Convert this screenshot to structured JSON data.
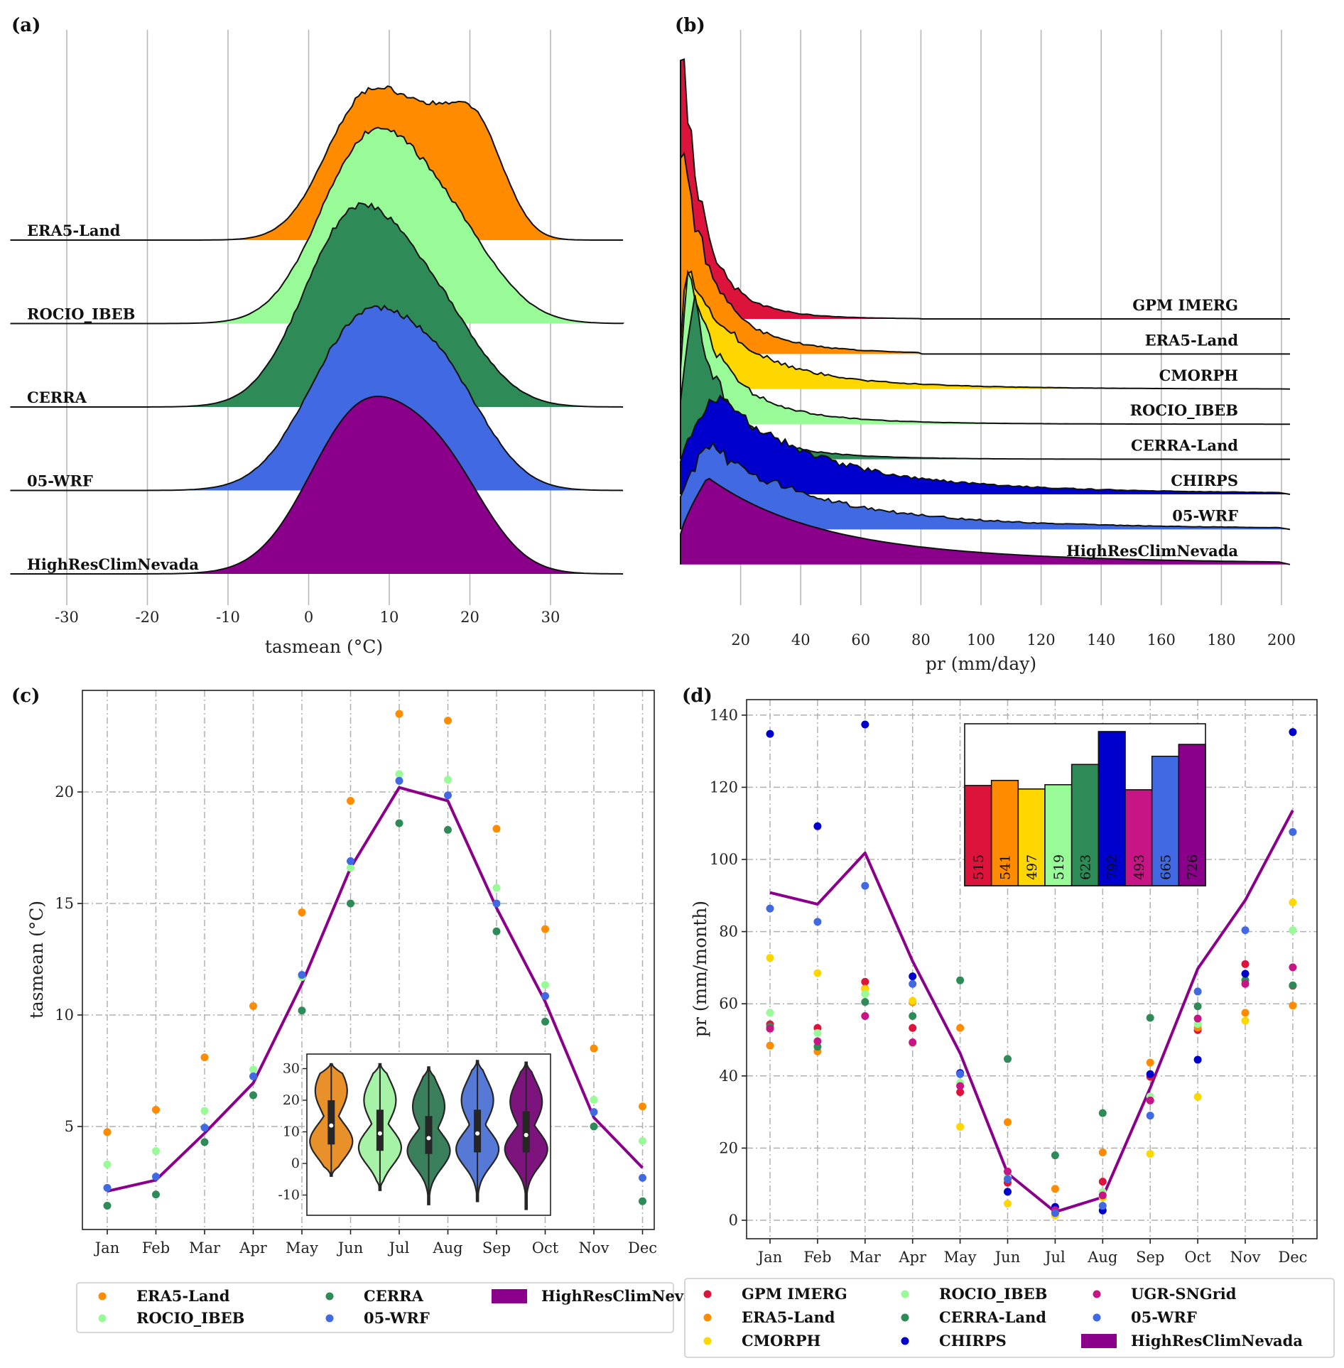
{
  "figure": {
    "panels": [
      "(a)",
      "(b)",
      "(c)",
      "(d)"
    ]
  },
  "chart_data": [
    {
      "id": "a",
      "type": "area",
      "subtype": "ridgeline-density",
      "panel_label": "(a)",
      "xlabel": "tasmean (°C)",
      "ylabel": "",
      "xlim": [
        -37,
        39
      ],
      "xticks": [
        -30,
        -20,
        -10,
        0,
        10,
        20,
        30
      ],
      "grid": "vertical",
      "series": [
        {
          "name": "ERA5-Land",
          "color": "#ff8c00",
          "peak_rel": 0.86,
          "components": [
            {
              "mu": 7,
              "sigma": 5.0,
              "w": 1.0
            },
            {
              "mu": 15,
              "sigma": 4.0,
              "w": 0.55
            },
            {
              "mu": 21,
              "sigma": 3.5,
              "w": 0.72
            }
          ]
        },
        {
          "name": "ROCIO_IBEB",
          "color": "#98fb98",
          "peak_rel": 1.1,
          "components": [
            {
              "mu": 7,
              "sigma": 6.0,
              "w": 1.0
            },
            {
              "mu": 17,
              "sigma": 6.0,
              "w": 0.55
            }
          ]
        },
        {
          "name": "CERRA",
          "color": "#2e8b57",
          "peak_rel": 1.14,
          "components": [
            {
              "mu": 5,
              "sigma": 6.0,
              "w": 1.0
            },
            {
              "mu": 15,
              "sigma": 6.0,
              "w": 0.55
            }
          ]
        },
        {
          "name": "05-WRF",
          "color": "#4169e1",
          "peak_rel": 1.03,
          "components": [
            {
              "mu": 6.5,
              "sigma": 6.5,
              "w": 1.0
            },
            {
              "mu": 17,
              "sigma": 5.5,
              "w": 0.55
            }
          ]
        },
        {
          "name": "HighResClimNevada",
          "color": "#8b008b",
          "peak_rel": 1.0,
          "components": [
            {
              "mu": 6.5,
              "sigma": 6.5,
              "w": 1.0
            },
            {
              "mu": 17,
              "sigma": 5.5,
              "w": 0.55
            }
          ]
        }
      ]
    },
    {
      "id": "b",
      "type": "area",
      "subtype": "ridgeline-density",
      "panel_label": "(b)",
      "xlabel": "pr (mm/day)",
      "ylabel": "",
      "xlim": [
        0,
        200
      ],
      "xticks": [
        20,
        40,
        60,
        80,
        100,
        120,
        140,
        160,
        180,
        200
      ],
      "grid": "vertical",
      "series": [
        {
          "name": "GPM IMERG",
          "color": "#dc143c",
          "peak_rel": 3.2,
          "peak_x": 0.3,
          "decay": 6.0,
          "tail_end": 80
        },
        {
          "name": "ERA5-Land",
          "color": "#ff8c00",
          "peak_rel": 2.35,
          "peak_x": 0.3,
          "decay": 9.0,
          "tail_end": 80
        },
        {
          "name": "CMORPH",
          "color": "#ffd700",
          "peak_rel": 1.36,
          "peak_x": 2,
          "decay": 16.0,
          "tail_end": 200
        },
        {
          "name": "ROCIO_IBEB",
          "color": "#98fb98",
          "peak_rel": 1.65,
          "peak_x": 2.5,
          "decay": 11.0,
          "tail_end": 200
        },
        {
          "name": "CERRA-Land",
          "color": "#2e8b57",
          "peak_rel": 1.77,
          "peak_x": 4.5,
          "decay": 9.0,
          "tail_end": 200
        },
        {
          "name": "CHIRPS",
          "color": "#0000cd",
          "peak_rel": 1.16,
          "peak_x": 12,
          "decay": 28.0,
          "tail_end": 200
        },
        {
          "name": "05-WRF",
          "color": "#4169e1",
          "peak_rel": 0.98,
          "peak_x": 9,
          "decay": 30.0,
          "tail_end": 200
        },
        {
          "name": "HighResClimNevada",
          "color": "#8b008b",
          "peak_rel": 1.0,
          "peak_x": 9,
          "decay": 34.0,
          "tail_end": 200
        }
      ]
    },
    {
      "id": "c",
      "type": "scatter",
      "panel_label": "(c)",
      "xlabel": "",
      "ylabel": "tasmean (°C)",
      "categories": [
        "Jan",
        "Feb",
        "Mar",
        "Apr",
        "May",
        "Jun",
        "Jul",
        "Aug",
        "Sep",
        "Oct",
        "Nov",
        "Dec"
      ],
      "ylim": [
        0.4,
        24.6
      ],
      "yticks": [
        5,
        10,
        15,
        20
      ],
      "grid": true,
      "legend_position": "below",
      "series": [
        {
          "name": "ERA5-Land",
          "kind": "points",
          "color": "#ff8c00",
          "values": [
            4.75,
            5.75,
            8.1,
            10.4,
            14.6,
            19.6,
            23.5,
            23.2,
            18.35,
            13.85,
            8.5,
            5.9
          ]
        },
        {
          "name": "ROCIO_IBEB",
          "kind": "points",
          "color": "#98fb98",
          "values": [
            3.3,
            3.9,
            5.7,
            7.55,
            11.7,
            16.6,
            20.8,
            20.55,
            15.7,
            11.35,
            6.2,
            4.35
          ]
        },
        {
          "name": "CERRA",
          "kind": "points",
          "color": "#2e8b57",
          "values": [
            1.45,
            1.95,
            4.3,
            6.4,
            10.2,
            15.0,
            18.6,
            18.3,
            13.75,
            9.7,
            5.0,
            1.65
          ]
        },
        {
          "name": "05-WRF",
          "kind": "points",
          "color": "#4169e1",
          "values": [
            2.25,
            2.75,
            4.95,
            7.25,
            11.8,
            16.9,
            20.5,
            19.85,
            15.0,
            10.85,
            5.65,
            2.7
          ]
        },
        {
          "name": "HighResClimNevada",
          "kind": "line",
          "color": "#8b008b",
          "values": [
            2.1,
            2.6,
            4.7,
            6.95,
            11.4,
            16.6,
            20.2,
            19.6,
            14.8,
            10.6,
            5.4,
            3.15
          ]
        }
      ],
      "inset": {
        "type": "violin",
        "ylim": [
          -16,
          35
        ],
        "yticks": [
          -10,
          0,
          10,
          20,
          30
        ],
        "violins": [
          {
            "name": "ERA5-Land",
            "color": "#e8912a",
            "min": -4,
            "q1": 6,
            "median": 12,
            "q3": 20,
            "max": 31.5
          },
          {
            "name": "ROCIO_IBEB",
            "color": "#a6f2a6",
            "min": -8.5,
            "q1": 4,
            "median": 9.5,
            "q3": 17,
            "max": 31.5
          },
          {
            "name": "CERRA",
            "color": "#3b805c",
            "min": -13,
            "q1": 3,
            "median": 8,
            "q3": 15,
            "max": 30.5
          },
          {
            "name": "05-WRF",
            "color": "#5779d6",
            "min": -12,
            "q1": 3.5,
            "median": 9.5,
            "q3": 17,
            "max": 32.5
          },
          {
            "name": "HighResClimNevada",
            "color": "#7d137d",
            "min": -14.5,
            "q1": 3.5,
            "median": 9,
            "q3": 16.5,
            "max": 32
          }
        ]
      }
    },
    {
      "id": "d",
      "type": "scatter",
      "panel_label": "(d)",
      "xlabel": "",
      "ylabel": "pr (mm/month)",
      "categories": [
        "Jan",
        "Feb",
        "Mar",
        "Apr",
        "May",
        "Jun",
        "Jul",
        "Aug",
        "Sep",
        "Oct",
        "Nov",
        "Dec"
      ],
      "ylim": [
        -5,
        144
      ],
      "yticks": [
        0,
        20,
        40,
        60,
        80,
        100,
        120,
        140
      ],
      "grid": true,
      "legend_position": "below",
      "series": [
        {
          "name": "GPM IMERG",
          "kind": "points",
          "color": "#dc143c",
          "values": [
            54.3,
            53.3,
            66.1,
            53.3,
            35.5,
            10.4,
            2.0,
            10.7,
            39.8,
            52.7,
            71.0,
            65.0
          ]
        },
        {
          "name": "ERA5-Land",
          "kind": "points",
          "color": "#ff8c00",
          "values": [
            48.4,
            46.8,
            64.2,
            60.4,
            53.3,
            27.2,
            8.7,
            18.8,
            43.7,
            53.4,
            57.5,
            59.5
          ]
        },
        {
          "name": "CMORPH",
          "kind": "points",
          "color": "#ffd700",
          "values": [
            72.7,
            68.5,
            64.0,
            60.8,
            25.9,
            4.6,
            1.3,
            6.3,
            18.4,
            34.2,
            55.3,
            88.1
          ]
        },
        {
          "name": "ROCIO_IBEB",
          "kind": "points",
          "color": "#98fb98",
          "values": [
            57.5,
            51.9,
            62.7,
            49.0,
            38.1,
            11.9,
            2.1,
            7.8,
            34.3,
            54.4,
            66.6,
            80.4
          ]
        },
        {
          "name": "CERRA-Land",
          "kind": "points",
          "color": "#2e8b57",
          "values": [
            53.6,
            48.1,
            60.5,
            56.6,
            66.5,
            44.7,
            18.0,
            29.7,
            56.1,
            59.3,
            66.5,
            65.1
          ]
        },
        {
          "name": "CHIRPS",
          "kind": "points",
          "color": "#0000cd",
          "values": [
            134.8,
            109.2,
            137.4,
            67.6,
            40.8,
            7.9,
            3.7,
            2.7,
            40.5,
            44.5,
            68.3,
            135.3
          ]
        },
        {
          "name": "UGR-SNGrid",
          "kind": "points",
          "color": "#c71585",
          "values": [
            53.1,
            49.6,
            56.6,
            49.3,
            37.2,
            13.5,
            2.8,
            6.9,
            33.2,
            55.9,
            65.5,
            70.1
          ]
        },
        {
          "name": "05-WRF",
          "kind": "points",
          "color": "#4169e1",
          "values": [
            86.4,
            82.7,
            92.7,
            65.5,
            40.5,
            11.4,
            2.0,
            4.0,
            29.0,
            63.4,
            80.4,
            107.6
          ]
        },
        {
          "name": "HighResClimNevada",
          "kind": "line",
          "color": "#8b008b",
          "values": [
            90.8,
            87.6,
            101.8,
            71.8,
            46.3,
            13.0,
            2.3,
            6.4,
            36.7,
            69.7,
            88.7,
            113.6
          ]
        }
      ],
      "inset": {
        "type": "bar",
        "title": "",
        "ylim": [
          0,
          832
        ],
        "categories": [
          "GPM IMERG",
          "ERA5-Land",
          "CMORPH",
          "ROCIO_IBEB",
          "CERRA-Land",
          "CHIRPS",
          "UGR-SNGrid",
          "05-WRF",
          "HighResClimNevada"
        ],
        "values": [
          515,
          541,
          497,
          519,
          623,
          792,
          493,
          665,
          726
        ],
        "labels": [
          "515",
          "541",
          "497",
          "519",
          "623",
          "792",
          "493",
          "665",
          "726"
        ],
        "colors": [
          "#dc143c",
          "#ff8c00",
          "#ffd700",
          "#98fb98",
          "#2e8b57",
          "#0000cd",
          "#c71585",
          "#4169e1",
          "#8b008b"
        ]
      }
    }
  ]
}
